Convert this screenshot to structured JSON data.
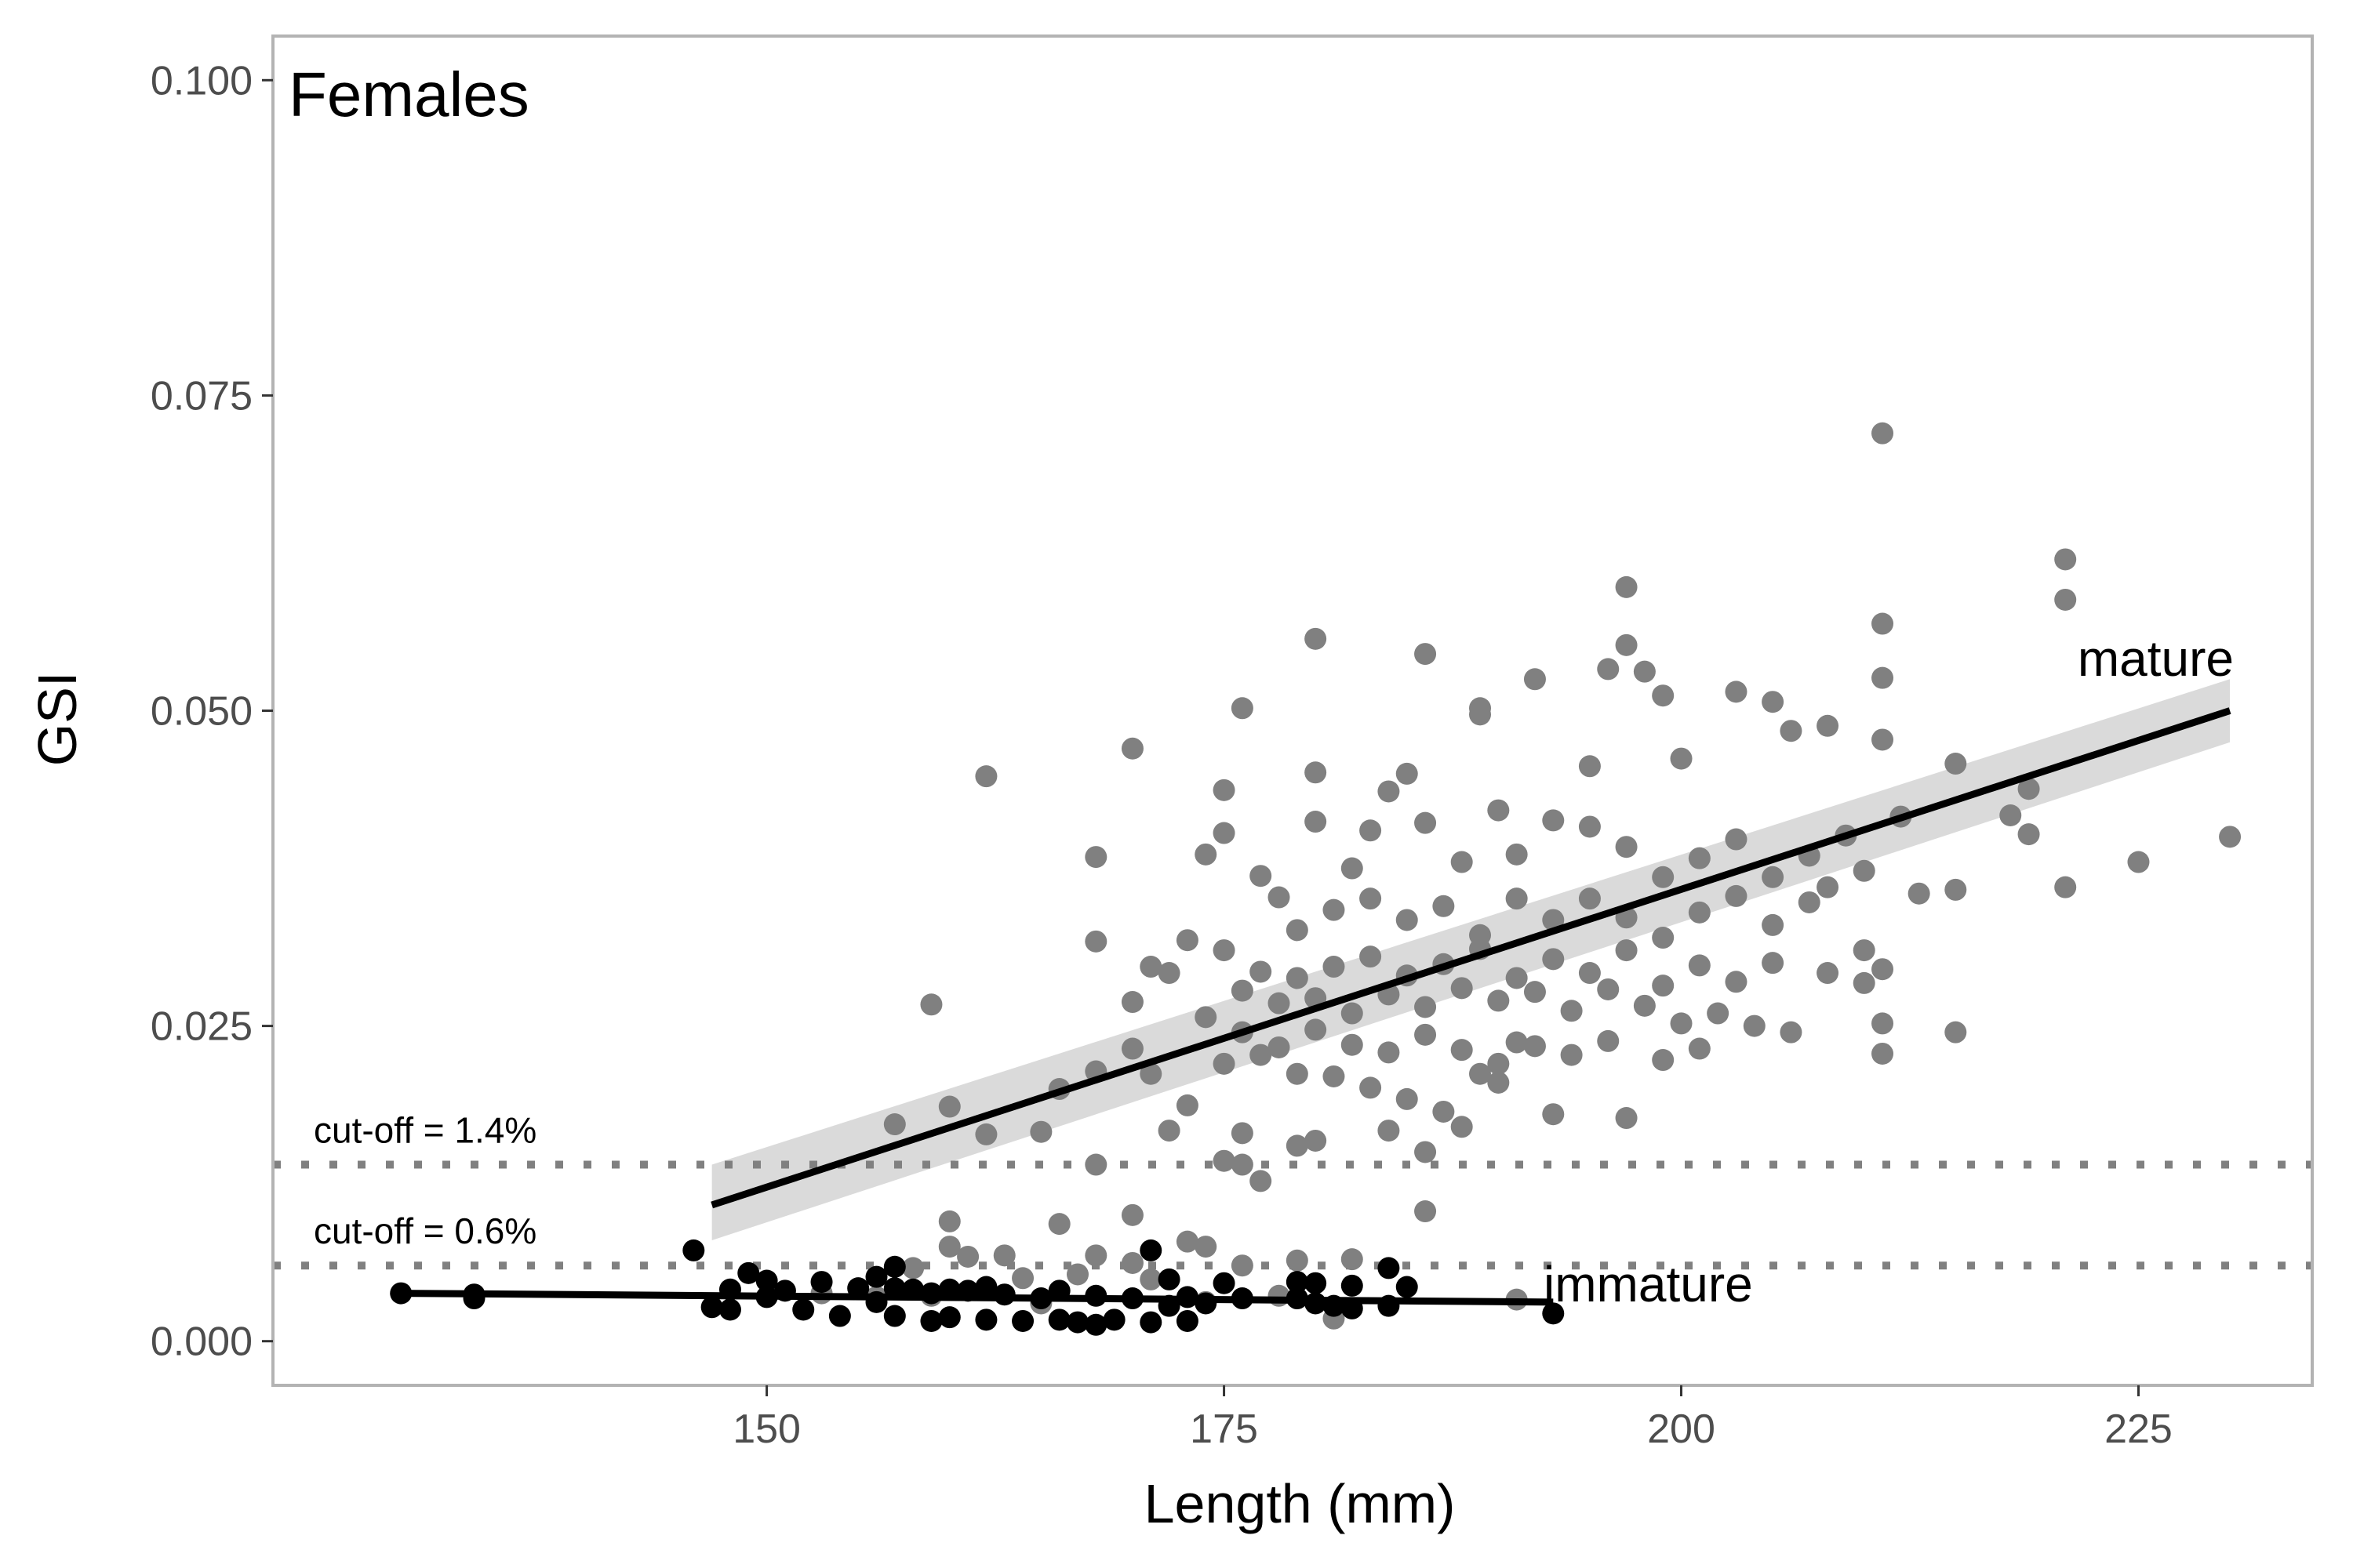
{
  "chart_data": {
    "type": "scatter",
    "title": "Females",
    "xlabel": "Length (mm)",
    "ylabel": "GSI",
    "xlim": [
      123,
      234.5
    ],
    "ylim": [
      -0.0035,
      0.1035
    ],
    "xticks": [
      150,
      175,
      200,
      225
    ],
    "xtick_labels": [
      "150",
      "175",
      "200",
      "225"
    ],
    "yticks": [
      0.0,
      0.025,
      0.05,
      0.075,
      0.1
    ],
    "ytick_labels": [
      "0.000",
      "0.025",
      "0.050",
      "0.075",
      "0.100"
    ],
    "grid": false,
    "colors": {
      "mature": "#808080",
      "immature": "#000000",
      "band": "#d3d3d3",
      "cutoff": "#808080",
      "frame": "#b3b3b3"
    },
    "cutoffs": [
      {
        "label": "cut-off = 1.4%",
        "y": 0.014
      },
      {
        "label": "cut-off = 0.6%",
        "y": 0.006
      }
    ],
    "series": [
      {
        "name": "mature",
        "fit": {
          "x": [
            147,
            230
          ],
          "y": [
            0.0108,
            0.05
          ]
        },
        "band": {
          "x": [
            147,
            230
          ],
          "upper": [
            0.014,
            0.0525
          ],
          "lower": [
            0.008,
            0.0475
          ]
        },
        "points": [
          [
            211,
            0.072
          ],
          [
            221,
            0.062
          ],
          [
            221,
            0.0588
          ],
          [
            197,
            0.0598
          ],
          [
            211,
            0.0569
          ],
          [
            180,
            0.0557
          ],
          [
            197,
            0.0552
          ],
          [
            186,
            0.0545
          ],
          [
            196,
            0.0533
          ],
          [
            198,
            0.0531
          ],
          [
            211,
            0.0526
          ],
          [
            192,
            0.0525
          ],
          [
            199,
            0.0512
          ],
          [
            203,
            0.0515
          ],
          [
            205,
            0.0507
          ],
          [
            176,
            0.0502
          ],
          [
            189,
            0.0502
          ],
          [
            189,
            0.0497
          ],
          [
            170,
            0.047
          ],
          [
            185,
            0.045
          ],
          [
            180,
            0.0451
          ],
          [
            195,
            0.0456
          ],
          [
            200,
            0.0462
          ],
          [
            206,
            0.0484
          ],
          [
            208,
            0.0488
          ],
          [
            211,
            0.0477
          ],
          [
            215,
            0.0458
          ],
          [
            219,
            0.0438
          ],
          [
            175,
            0.0437
          ],
          [
            184,
            0.0436
          ],
          [
            162,
            0.0448
          ],
          [
            168,
            0.0384
          ],
          [
            174,
            0.0386
          ],
          [
            175,
            0.0403
          ],
          [
            177,
            0.0369
          ],
          [
            180,
            0.0412
          ],
          [
            182,
            0.0375
          ],
          [
            183,
            0.0405
          ],
          [
            186,
            0.0411
          ],
          [
            188,
            0.038
          ],
          [
            190,
            0.0421
          ],
          [
            191,
            0.0386
          ],
          [
            193,
            0.0413
          ],
          [
            195,
            0.0408
          ],
          [
            197,
            0.0392
          ],
          [
            199,
            0.0368
          ],
          [
            201,
            0.0383
          ],
          [
            203,
            0.0398
          ],
          [
            205,
            0.0368
          ],
          [
            207,
            0.0385
          ],
          [
            209,
            0.0401
          ],
          [
            210,
            0.0373
          ],
          [
            212,
            0.0416
          ],
          [
            218,
            0.0417
          ],
          [
            219,
            0.0402
          ],
          [
            221,
            0.036
          ],
          [
            225,
            0.038
          ],
          [
            230,
            0.04
          ],
          [
            213,
            0.0355
          ],
          [
            215,
            0.0358
          ],
          [
            178,
            0.0352
          ],
          [
            179,
            0.0326
          ],
          [
            181,
            0.0342
          ],
          [
            183,
            0.0351
          ],
          [
            185,
            0.0334
          ],
          [
            187,
            0.0345
          ],
          [
            189,
            0.0322
          ],
          [
            191,
            0.0351
          ],
          [
            193,
            0.0334
          ],
          [
            195,
            0.0351
          ],
          [
            197,
            0.0336
          ],
          [
            199,
            0.032
          ],
          [
            201,
            0.034
          ],
          [
            203,
            0.0353
          ],
          [
            205,
            0.033
          ],
          [
            207,
            0.0348
          ],
          [
            208,
            0.036
          ],
          [
            173,
            0.0318
          ],
          [
            175,
            0.031
          ],
          [
            177,
            0.0293
          ],
          [
            179,
            0.0288
          ],
          [
            181,
            0.0297
          ],
          [
            183,
            0.0305
          ],
          [
            185,
            0.029
          ],
          [
            187,
            0.0299
          ],
          [
            189,
            0.0311
          ],
          [
            191,
            0.0288
          ],
          [
            193,
            0.0303
          ],
          [
            195,
            0.0292
          ],
          [
            197,
            0.031
          ],
          [
            199,
            0.0282
          ],
          [
            201,
            0.0298
          ],
          [
            203,
            0.0285
          ],
          [
            205,
            0.03
          ],
          [
            210,
            0.031
          ],
          [
            211,
            0.0295
          ],
          [
            168,
            0.0317
          ],
          [
            171,
            0.0297
          ],
          [
            172,
            0.0292
          ],
          [
            176,
            0.0278
          ],
          [
            178,
            0.0268
          ],
          [
            180,
            0.0272
          ],
          [
            182,
            0.026
          ],
          [
            184,
            0.0275
          ],
          [
            186,
            0.0265
          ],
          [
            188,
            0.028
          ],
          [
            190,
            0.027
          ],
          [
            192,
            0.0277
          ],
          [
            194,
            0.0262
          ],
          [
            196,
            0.0279
          ],
          [
            198,
            0.0266
          ],
          [
            200,
            0.0252
          ],
          [
            202,
            0.026
          ],
          [
            204,
            0.025
          ],
          [
            206,
            0.0245
          ],
          [
            208,
            0.0292
          ],
          [
            210,
            0.0284
          ],
          [
            211,
            0.0252
          ],
          [
            215,
            0.0245
          ],
          [
            170,
            0.0269
          ],
          [
            174,
            0.0257
          ],
          [
            176,
            0.0245
          ],
          [
            178,
            0.0233
          ],
          [
            180,
            0.0247
          ],
          [
            182,
            0.0235
          ],
          [
            184,
            0.0229
          ],
          [
            186,
            0.0243
          ],
          [
            188,
            0.0231
          ],
          [
            190,
            0.022
          ],
          [
            192,
            0.0234
          ],
          [
            194,
            0.0227
          ],
          [
            196,
            0.0238
          ],
          [
            199,
            0.0223
          ],
          [
            201,
            0.0232
          ],
          [
            211,
            0.0228
          ],
          [
            159,
            0.0267
          ],
          [
            166,
            0.02
          ],
          [
            168,
            0.0214
          ],
          [
            170,
            0.0232
          ],
          [
            171,
            0.0212
          ],
          [
            173,
            0.0187
          ],
          [
            175,
            0.022
          ],
          [
            177,
            0.0227
          ],
          [
            179,
            0.0212
          ],
          [
            181,
            0.021
          ],
          [
            183,
            0.0201
          ],
          [
            185,
            0.0192
          ],
          [
            187,
            0.0182
          ],
          [
            189,
            0.0212
          ],
          [
            191,
            0.0237
          ],
          [
            193,
            0.018
          ],
          [
            197,
            0.0177
          ],
          [
            160,
            0.0186
          ],
          [
            157,
            0.0172
          ],
          [
            162,
            0.0164
          ],
          [
            165,
            0.0166
          ],
          [
            172,
            0.0167
          ],
          [
            176,
            0.0165
          ],
          [
            179,
            0.0155
          ],
          [
            180,
            0.0159
          ],
          [
            184,
            0.0167
          ],
          [
            186,
            0.015
          ],
          [
            188,
            0.017
          ],
          [
            190,
            0.0205
          ],
          [
            176,
            0.014
          ],
          [
            168,
            0.014
          ],
          [
            175,
            0.0143
          ],
          [
            177,
            0.0127
          ],
          [
            186,
            0.0103
          ],
          [
            170,
            0.01
          ],
          [
            160,
            0.0095
          ],
          [
            166,
            0.0093
          ],
          [
            173,
            0.0079
          ],
          [
            160,
            0.0075
          ],
          [
            161,
            0.0067
          ],
          [
            163,
            0.0068
          ],
          [
            158,
            0.0058
          ],
          [
            170,
            0.0062
          ],
          [
            174,
            0.0075
          ],
          [
            176,
            0.006
          ],
          [
            179,
            0.0064
          ],
          [
            182,
            0.0065
          ],
          [
            168,
            0.0068
          ],
          [
            164,
            0.005
          ],
          [
            171,
            0.0049
          ],
          [
            167,
            0.0053
          ],
          [
            153,
            0.0038
          ],
          [
            156,
            0.0035
          ],
          [
            159,
            0.0036
          ],
          [
            165,
            0.003
          ],
          [
            174,
            0.0031
          ],
          [
            178,
            0.0036
          ],
          [
            181,
            0.0018
          ],
          [
            191,
            0.0033
          ]
        ]
      },
      {
        "name": "immature",
        "fit": {
          "x": [
            130,
            193
          ],
          "y": [
            0.0038,
            0.0031
          ]
        },
        "points": [
          [
            130,
            0.0038
          ],
          [
            134,
            0.0037
          ],
          [
            134,
            0.0034
          ],
          [
            146,
            0.0072
          ],
          [
            147,
            0.0027
          ],
          [
            148,
            0.0041
          ],
          [
            148,
            0.0025
          ],
          [
            149,
            0.0054
          ],
          [
            150,
            0.0048
          ],
          [
            150,
            0.0035
          ],
          [
            151,
            0.004
          ],
          [
            152,
            0.0025
          ],
          [
            153,
            0.0047
          ],
          [
            154,
            0.002
          ],
          [
            155,
            0.0042
          ],
          [
            156,
            0.0051
          ],
          [
            156,
            0.0031
          ],
          [
            157,
            0.0059
          ],
          [
            157,
            0.0042
          ],
          [
            157,
            0.002
          ],
          [
            158,
            0.0041
          ],
          [
            159,
            0.0038
          ],
          [
            159,
            0.0016
          ],
          [
            160,
            0.0041
          ],
          [
            160,
            0.0019
          ],
          [
            161,
            0.004
          ],
          [
            162,
            0.0043
          ],
          [
            162,
            0.0017
          ],
          [
            163,
            0.0037
          ],
          [
            164,
            0.0016
          ],
          [
            165,
            0.0034
          ],
          [
            166,
            0.004
          ],
          [
            166,
            0.0017
          ],
          [
            167,
            0.0015
          ],
          [
            168,
            0.0036
          ],
          [
            168,
            0.0013
          ],
          [
            169,
            0.0017
          ],
          [
            170,
            0.0034
          ],
          [
            171,
            0.0072
          ],
          [
            171,
            0.0015
          ],
          [
            172,
            0.0049
          ],
          [
            172,
            0.0028
          ],
          [
            173,
            0.0016
          ],
          [
            173,
            0.0035
          ],
          [
            174,
            0.003
          ],
          [
            175,
            0.0046
          ],
          [
            176,
            0.0034
          ],
          [
            179,
            0.0047
          ],
          [
            179,
            0.0034
          ],
          [
            180,
            0.0046
          ],
          [
            180,
            0.003
          ],
          [
            181,
            0.0028
          ],
          [
            182,
            0.0044
          ],
          [
            182,
            0.0026
          ],
          [
            184,
            0.0058
          ],
          [
            184,
            0.0028
          ],
          [
            185,
            0.0043
          ],
          [
            193,
            0.0022
          ]
        ]
      }
    ]
  }
}
